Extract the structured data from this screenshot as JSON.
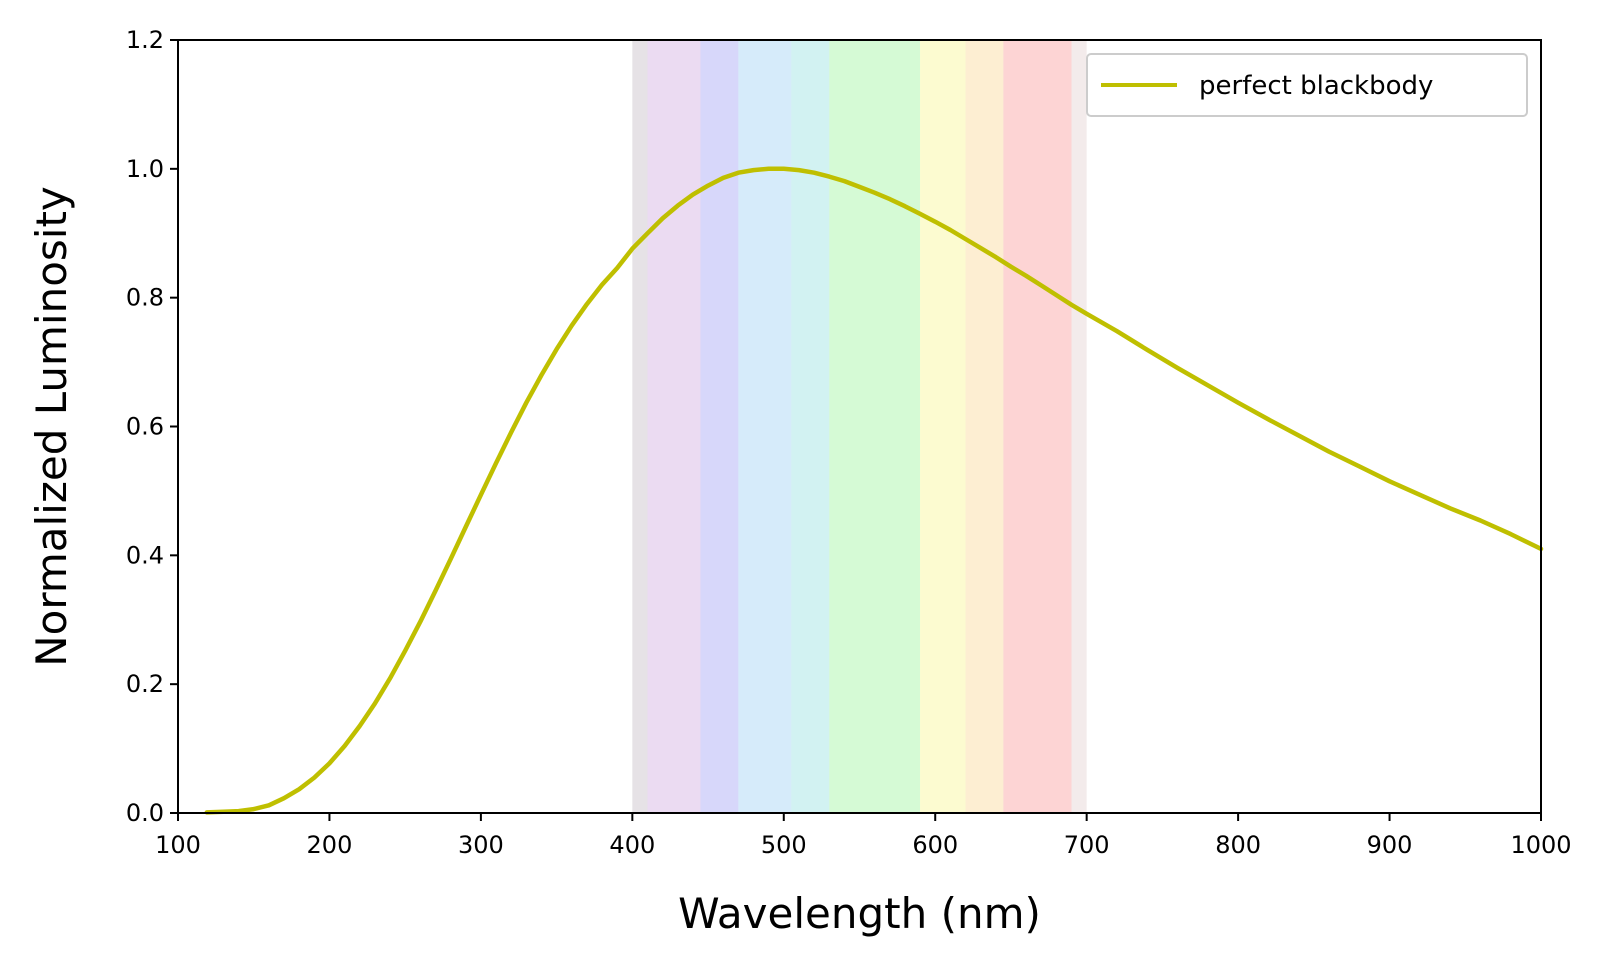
{
  "chart_data": {
    "type": "line",
    "title": "",
    "xlabel": "Wavelength (nm)",
    "ylabel": "Normalized Luminosity",
    "xlim": [
      100,
      1000
    ],
    "ylim": [
      0.0,
      1.2
    ],
    "x_ticks": [
      100,
      200,
      300,
      400,
      500,
      600,
      700,
      800,
      900,
      1000
    ],
    "x_tick_labels": [
      "100",
      "200",
      "300",
      "400",
      "500",
      "600",
      "700",
      "800",
      "900",
      "1000"
    ],
    "y_ticks": [
      0.0,
      0.2,
      0.4,
      0.6,
      0.8,
      1.0,
      1.2
    ],
    "y_tick_labels": [
      "0.0",
      "0.2",
      "0.4",
      "0.6",
      "0.8",
      "1.0",
      "1.2"
    ],
    "grid": false,
    "legend": {
      "placement": "top-right"
    },
    "visible_spectrum_band": {
      "range": [
        400,
        700
      ],
      "opacity": 0.22,
      "colors": [
        {
          "from": 400,
          "to": 410,
          "color": "#8e7a8e"
        },
        {
          "from": 410,
          "to": 445,
          "color": "#a259c2"
        },
        {
          "from": 445,
          "to": 470,
          "color": "#4a4ae6"
        },
        {
          "from": 470,
          "to": 505,
          "color": "#43a4e6"
        },
        {
          "from": 505,
          "to": 530,
          "color": "#32c2c2"
        },
        {
          "from": 530,
          "to": 590,
          "color": "#3ee83e"
        },
        {
          "from": 590,
          "to": 620,
          "color": "#f2ee2a"
        },
        {
          "from": 620,
          "to": 645,
          "color": "#f7b030"
        },
        {
          "from": 645,
          "to": 690,
          "color": "#f53d3d"
        },
        {
          "from": 690,
          "to": 700,
          "color": "#c8a3a3"
        }
      ]
    },
    "series": [
      {
        "name": "perfect blackbody",
        "color": "#bfbf00",
        "x": [
          119,
          130,
          140,
          150,
          160,
          170,
          180,
          190,
          200,
          210,
          220,
          230,
          240,
          250,
          260,
          270,
          280,
          290,
          300,
          310,
          320,
          330,
          340,
          350,
          360,
          370,
          380,
          390,
          400,
          410,
          420,
          430,
          440,
          450,
          460,
          470,
          480,
          490,
          500,
          510,
          520,
          530,
          540,
          550,
          560,
          570,
          580,
          590,
          600,
          610,
          620,
          630,
          640,
          650,
          660,
          670,
          680,
          690,
          700,
          720,
          740,
          760,
          780,
          800,
          820,
          840,
          860,
          880,
          900,
          920,
          940,
          960,
          980,
          1000
        ],
        "y": [
          0.001,
          0.002,
          0.003,
          0.006,
          0.012,
          0.023,
          0.037,
          0.055,
          0.077,
          0.104,
          0.135,
          0.17,
          0.209,
          0.252,
          0.297,
          0.345,
          0.394,
          0.444,
          0.494,
          0.543,
          0.591,
          0.637,
          0.68,
          0.72,
          0.757,
          0.79,
          0.82,
          0.846,
          0.876,
          0.9,
          0.923,
          0.943,
          0.96,
          0.974,
          0.986,
          0.994,
          0.998,
          1.0,
          1.0,
          0.998,
          0.994,
          0.988,
          0.981,
          0.972,
          0.963,
          0.953,
          0.942,
          0.93,
          0.918,
          0.905,
          0.891,
          0.877,
          0.863,
          0.848,
          0.834,
          0.819,
          0.804,
          0.789,
          0.775,
          0.748,
          0.719,
          0.691,
          0.664,
          0.637,
          0.611,
          0.586,
          0.561,
          0.538,
          0.515,
          0.494,
          0.473,
          0.454,
          0.433,
          0.41
        ]
      }
    ]
  }
}
